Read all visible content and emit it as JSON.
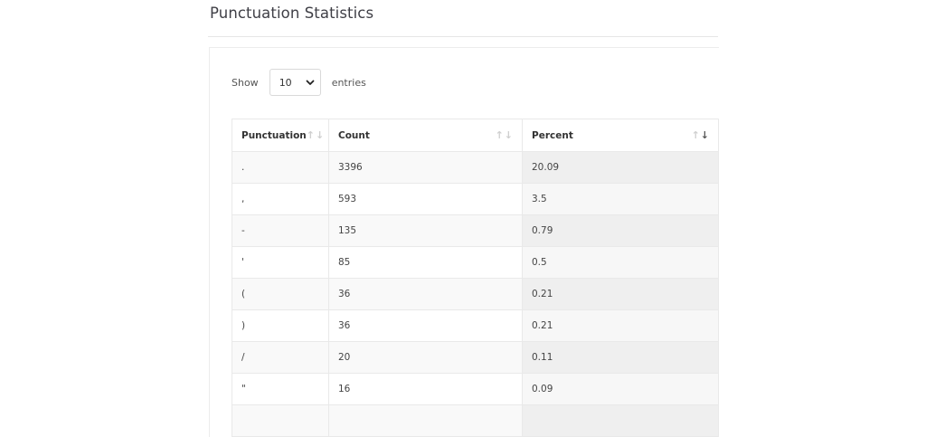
{
  "page": {
    "title": "Punctuation Statistics"
  },
  "length": {
    "show_label": "Show",
    "selected": "10",
    "entries_label": "entries"
  },
  "table": {
    "columns": [
      {
        "label": "Punctuation",
        "sort": "none"
      },
      {
        "label": "Count",
        "sort": "none"
      },
      {
        "label": "Percent",
        "sort": "descending"
      }
    ],
    "rows": [
      {
        "punctuation": ".",
        "count": "3396",
        "percent": "20.09"
      },
      {
        "punctuation": ",",
        "count": "593",
        "percent": "3.5"
      },
      {
        "punctuation": "-",
        "count": "135",
        "percent": "0.79"
      },
      {
        "punctuation": "'",
        "count": "85",
        "percent": "0.5"
      },
      {
        "punctuation": "(",
        "count": "36",
        "percent": "0.21"
      },
      {
        "punctuation": ")",
        "count": "36",
        "percent": "0.21"
      },
      {
        "punctuation": "/",
        "count": "20",
        "percent": "0.11"
      },
      {
        "punctuation": "\"",
        "count": "16",
        "percent": "0.09"
      },
      {
        "punctuation": "",
        "count": "",
        "percent": ""
      }
    ]
  },
  "icons": {
    "select_arrow": "chevron-down-icon",
    "sort": "sort-arrows-icon"
  }
}
